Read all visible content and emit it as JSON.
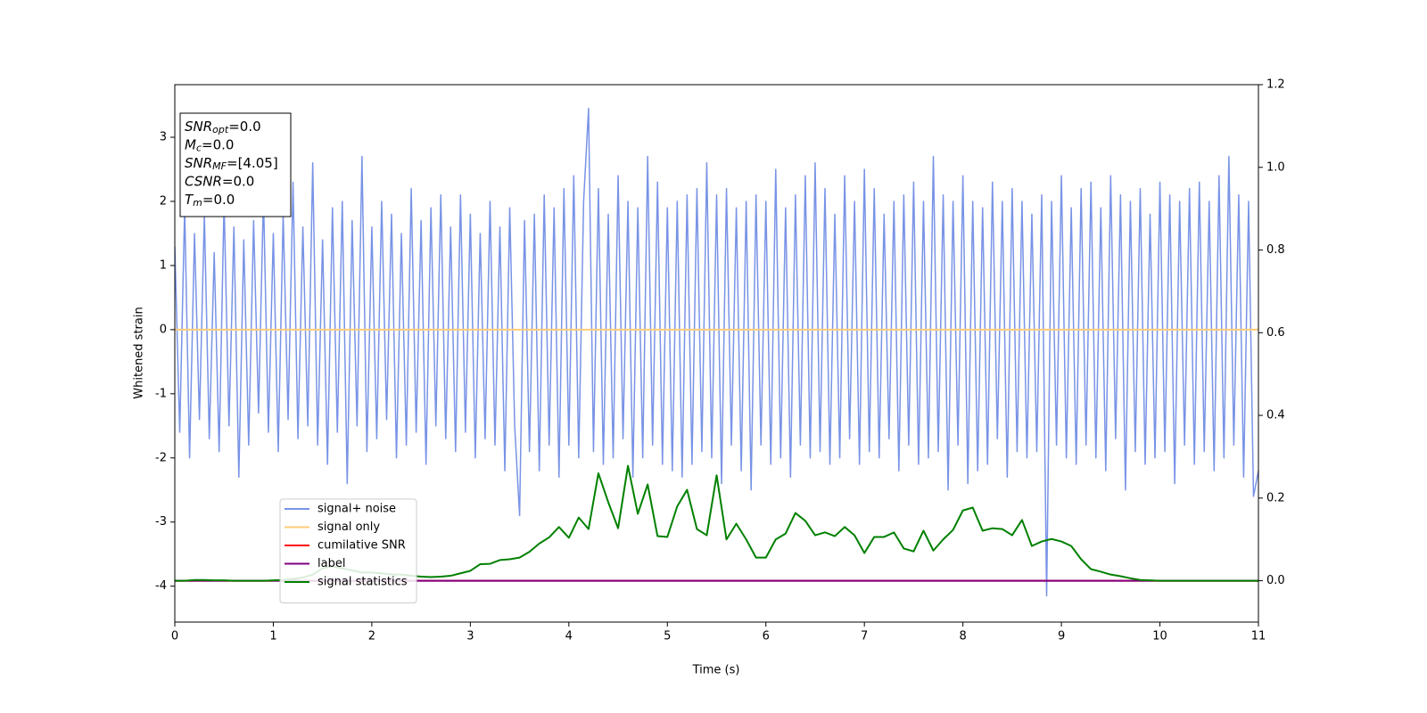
{
  "chart_data": {
    "type": "line",
    "xlabel": "Time (s)",
    "ylabel": "Whitened strain",
    "xlim": [
      0,
      11
    ],
    "ylim": [
      -4.56,
      3.82
    ],
    "y2lim": [
      -0.1,
      1.2
    ],
    "xticks": [
      0,
      1,
      2,
      3,
      4,
      5,
      6,
      7,
      8,
      9,
      10,
      11
    ],
    "yticks": [
      -4,
      -3,
      -2,
      -1,
      0,
      1,
      2,
      3
    ],
    "y2ticks": [
      {
        "value": 0,
        "label": "0.0"
      },
      {
        "value": 0.2,
        "label": "0.2"
      },
      {
        "value": 0.4,
        "label": "0.4"
      },
      {
        "value": 0.6,
        "label": "0.6"
      },
      {
        "value": 0.8,
        "label": "0.8"
      },
      {
        "value": 1,
        "label": "1.0"
      },
      {
        "value": 1.2,
        "label": "1.2"
      }
    ],
    "legend": "lower left",
    "annotations": [
      {
        "symbol": "SNR",
        "subscript": "opt",
        "text": "=0.0"
      },
      {
        "symbol": "M",
        "subscript": "c",
        "text": "=0.0"
      },
      {
        "symbol": "SNR",
        "subscript": "MF",
        "text": "=[4.05]"
      },
      {
        "symbol": "CSNR",
        "text": "=0.0"
      },
      {
        "symbol": "T",
        "subscript": "m",
        "text": "=0.0"
      }
    ],
    "series": [
      {
        "name": "signal+ noise",
        "color": "#7893e6",
        "axis": "y",
        "x": [
          0,
          0.05,
          0.1,
          0.15,
          0.2,
          0.25,
          0.3,
          0.35,
          0.4,
          0.45,
          0.5,
          0.55,
          0.6,
          0.65,
          0.7,
          0.75,
          0.8,
          0.85,
          0.9,
          0.95,
          1,
          1.05,
          1.1,
          1.15,
          1.2,
          1.25,
          1.3,
          1.35,
          1.4,
          1.45,
          1.5,
          1.55,
          1.6,
          1.65,
          1.7,
          1.75,
          1.8,
          1.85,
          1.9,
          1.95,
          2,
          2.05,
          2.1,
          2.15,
          2.2,
          2.25,
          2.3,
          2.35,
          2.4,
          2.45,
          2.5,
          2.55,
          2.6,
          2.65,
          2.7,
          2.75,
          2.8,
          2.85,
          2.9,
          2.95,
          3,
          3.05,
          3.1,
          3.15,
          3.2,
          3.25,
          3.3,
          3.35,
          3.4,
          3.45,
          3.5,
          3.55,
          3.6,
          3.65,
          3.7,
          3.75,
          3.8,
          3.85,
          3.9,
          3.95,
          4,
          4.05,
          4.1,
          4.15,
          4.2,
          4.25,
          4.3,
          4.35,
          4.4,
          4.45,
          4.5,
          4.55,
          4.6,
          4.65,
          4.7,
          4.75,
          4.8,
          4.85,
          4.9,
          4.95,
          5,
          5.05,
          5.1,
          5.15,
          5.2,
          5.25,
          5.3,
          5.35,
          5.4,
          5.45,
          5.5,
          5.55,
          5.6,
          5.65,
          5.7,
          5.75,
          5.8,
          5.85,
          5.9,
          5.95,
          6,
          6.05,
          6.1,
          6.15,
          6.2,
          6.25,
          6.3,
          6.35,
          6.4,
          6.45,
          6.5,
          6.55,
          6.6,
          6.65,
          6.7,
          6.75,
          6.8,
          6.85,
          6.9,
          6.95,
          7,
          7.05,
          7.1,
          7.15,
          7.2,
          7.25,
          7.3,
          7.35,
          7.4,
          7.45,
          7.5,
          7.55,
          7.6,
          7.65,
          7.7,
          7.75,
          7.8,
          7.85,
          7.9,
          7.95,
          8,
          8.05,
          8.1,
          8.15,
          8.2,
          8.25,
          8.3,
          8.35,
          8.4,
          8.45,
          8.5,
          8.55,
          8.6,
          8.65,
          8.7,
          8.75,
          8.8,
          8.85,
          8.9,
          8.95,
          9,
          9.05,
          9.1,
          9.15,
          9.2,
          9.25,
          9.3,
          9.35,
          9.4,
          9.45,
          9.5,
          9.55,
          9.6,
          9.65,
          9.7,
          9.75,
          9.8,
          9.85,
          9.9,
          9.95,
          10,
          10.05,
          10.1,
          10.15,
          10.2,
          10.25,
          10.3,
          10.35,
          10.4,
          10.45,
          10.5,
          10.55,
          10.6,
          10.65,
          10.7,
          10.75,
          10.8,
          10.85,
          10.9,
          10.95,
          11
        ],
        "values": [
          1.3,
          -1.6,
          1.9,
          -2.0,
          1.5,
          -1.4,
          1.8,
          -1.7,
          1.2,
          -1.9,
          2.0,
          -1.5,
          1.6,
          -2.3,
          1.4,
          -1.8,
          1.7,
          -1.3,
          2.1,
          -1.6,
          1.5,
          -1.9,
          1.8,
          -1.4,
          2.3,
          -1.7,
          1.6,
          -1.5,
          2.6,
          -1.8,
          1.4,
          -2.1,
          1.9,
          -1.6,
          2.0,
          -2.4,
          1.7,
          -1.5,
          2.7,
          -1.9,
          1.6,
          -1.7,
          2.0,
          -1.4,
          1.8,
          -2.0,
          1.5,
          -1.8,
          2.2,
          -1.6,
          1.7,
          -2.1,
          1.9,
          -1.5,
          2.1,
          -1.7,
          1.6,
          -1.9,
          2.1,
          -1.6,
          1.8,
          -2.0,
          1.5,
          -1.7,
          2.0,
          -1.8,
          1.6,
          -2.2,
          1.9,
          -1.5,
          -2.9,
          1.7,
          -1.9,
          1.8,
          -2.2,
          2.1,
          -1.8,
          1.9,
          -2.3,
          2.2,
          -1.8,
          2.4,
          -2.0,
          2.0,
          3.45,
          -1.9,
          2.2,
          -2.1,
          1.8,
          -2.0,
          2.4,
          -1.7,
          2.0,
          -2.3,
          1.9,
          -2.0,
          2.7,
          -1.8,
          2.3,
          -2.1,
          1.9,
          -2.2,
          2.0,
          -2.3,
          2.1,
          -2.1,
          2.2,
          -1.9,
          2.6,
          -2.0,
          2.1,
          -2.4,
          2.2,
          -1.8,
          1.9,
          -2.2,
          2.0,
          -2.5,
          2.1,
          -1.8,
          2.0,
          -2.1,
          2.5,
          -2.0,
          1.9,
          -2.3,
          2.1,
          -1.8,
          2.4,
          -2.0,
          2.6,
          -1.9,
          2.2,
          -2.1,
          1.8,
          -2.0,
          2.4,
          -1.7,
          2.0,
          -2.1,
          2.5,
          -1.9,
          2.2,
          -2.0,
          1.8,
          -1.7,
          2.0,
          -2.2,
          2.1,
          -1.8,
          2.3,
          -2.1,
          2.0,
          -2.0,
          2.7,
          -1.9,
          2.1,
          -2.5,
          2.0,
          -1.8,
          2.4,
          -2.4,
          2.0,
          -2.2,
          1.9,
          -2.1,
          2.3,
          -1.7,
          2.0,
          -2.3,
          2.2,
          -1.9,
          2.0,
          -2.0,
          1.8,
          -1.9,
          2.1,
          -4.15,
          2.0,
          -1.8,
          2.4,
          -2.0,
          1.9,
          -2.1,
          2.2,
          -1.8,
          2.3,
          -2.0,
          1.9,
          -2.2,
          2.4,
          -1.7,
          2.1,
          -2.5,
          2.0,
          -1.9,
          2.2,
          -2.1,
          1.8,
          -2.0,
          2.3,
          -1.9,
          2.1,
          -2.4,
          2.0,
          -1.8,
          2.2,
          -2.1,
          2.3,
          -1.9,
          2.0,
          -2.2,
          2.4,
          -2.0,
          2.7,
          -1.8,
          2.1,
          -2.3,
          2.0,
          -2.6,
          -2.2
        ]
      },
      {
        "name": "signal only",
        "color": "#fdcc7a",
        "axis": "y",
        "x": [
          0,
          11
        ],
        "values": [
          0,
          0
        ]
      },
      {
        "name": "cumilative SNR",
        "color": "#ff0000",
        "axis": "y2",
        "x": [
          0,
          11
        ],
        "values": [
          0,
          0
        ]
      },
      {
        "name": "label",
        "color": "#800080",
        "axis": "y2",
        "x": [
          0,
          11
        ],
        "values": [
          0,
          0
        ]
      },
      {
        "name": "signal statistics",
        "color": "#008000",
        "axis": "y2",
        "x": [
          0,
          0.1,
          0.2,
          0.3,
          0.4,
          0.5,
          0.6,
          0.7,
          0.8,
          0.9,
          1,
          1.1,
          1.2,
          1.3,
          1.4,
          1.5,
          1.6,
          1.7,
          1.8,
          1.9,
          2,
          2.1,
          2.2,
          2.3,
          2.4,
          2.5,
          2.6,
          2.7,
          2.8,
          2.9,
          3,
          3.1,
          3.2,
          3.3,
          3.4,
          3.5,
          3.6,
          3.7,
          3.8,
          3.9,
          4,
          4.1,
          4.2,
          4.3,
          4.4,
          4.5,
          4.6,
          4.7,
          4.8,
          4.9,
          5,
          5.1,
          5.2,
          5.3,
          5.4,
          5.5,
          5.6,
          5.7,
          5.8,
          5.9,
          6,
          6.1,
          6.2,
          6.3,
          6.4,
          6.5,
          6.6,
          6.7,
          6.8,
          6.9,
          7,
          7.1,
          7.2,
          7.3,
          7.4,
          7.5,
          7.6,
          7.7,
          7.8,
          7.9,
          8,
          8.1,
          8.2,
          8.3,
          8.4,
          8.5,
          8.6,
          8.7,
          8.8,
          8.9,
          9,
          9.1,
          9.2,
          9.3,
          9.4,
          9.5,
          9.6,
          9.7,
          9.8,
          9.9,
          10,
          10.1,
          10.2,
          10.3,
          10.4,
          10.5,
          10.6,
          10.7,
          10.8,
          10.9,
          11
        ],
        "values": [
          0,
          0,
          0.002,
          0.002,
          0.001,
          0.001,
          0,
          0,
          0,
          0,
          0.001,
          0.002,
          0.004,
          0.008,
          0.015,
          0.03,
          0.035,
          0.03,
          0.025,
          0.02,
          0.02,
          0.018,
          0.015,
          0.015,
          0.012,
          0.01,
          0.009,
          0.01,
          0.012,
          0.018,
          0.024,
          0.04,
          0.041,
          0.05,
          0.052,
          0.056,
          0.07,
          0.09,
          0.105,
          0.13,
          0.104,
          0.153,
          0.125,
          0.26,
          0.19,
          0.127,
          0.278,
          0.162,
          0.233,
          0.108,
          0.106,
          0.18,
          0.22,
          0.125,
          0.11,
          0.255,
          0.1,
          0.138,
          0.1,
          0.056,
          0.056,
          0.1,
          0.114,
          0.164,
          0.145,
          0.11,
          0.117,
          0.108,
          0.13,
          0.11,
          0.067,
          0.106,
          0.106,
          0.117,
          0.078,
          0.071,
          0.121,
          0.073,
          0.1,
          0.123,
          0.17,
          0.177,
          0.121,
          0.127,
          0.125,
          0.11,
          0.147,
          0.084,
          0.095,
          0.101,
          0.095,
          0.084,
          0.052,
          0.028,
          0.022,
          0.015,
          0.011,
          0.006,
          0.002,
          0.001,
          0,
          0,
          0,
          0,
          0,
          0,
          0,
          0,
          0,
          0,
          0
        ]
      }
    ]
  }
}
